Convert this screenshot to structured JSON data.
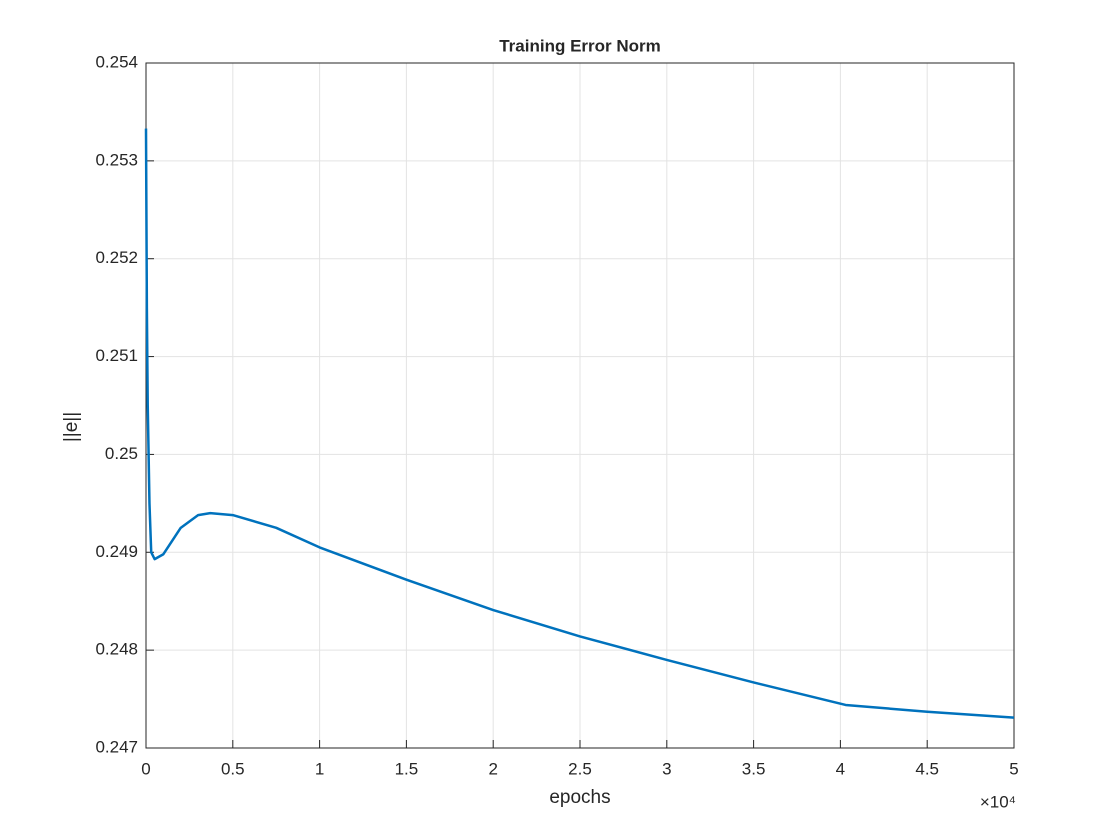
{
  "chart_data": {
    "type": "line",
    "title": "Training Error Norm",
    "x_label": "epochs",
    "y_label": "||e||",
    "x_multiplier": "×10⁴",
    "x": [
      0,
      0.005,
      0.01,
      0.02,
      0.03,
      0.05,
      0.1,
      0.2,
      0.3,
      0.37,
      0.5,
      0.75,
      1.0,
      1.5,
      2.0,
      2.5,
      3.0,
      3.5,
      4.03,
      4.5,
      5.0
    ],
    "series": [
      {
        "name": "||e||",
        "color": "#0072bd",
        "values": [
          0.25333,
          0.2515,
          0.2505,
          0.2495,
          0.249,
          0.24893,
          0.24898,
          0.24925,
          0.24938,
          0.2494,
          0.24938,
          0.24925,
          0.24905,
          0.24872,
          0.24841,
          0.24814,
          0.2479,
          0.24767,
          0.24744,
          0.24737,
          0.24731
        ]
      }
    ],
    "xlim": [
      0,
      5
    ],
    "xticks": [
      0,
      0.5,
      1,
      1.5,
      2,
      2.5,
      3,
      3.5,
      4,
      4.5,
      5
    ],
    "ylim": [
      0.247,
      0.254
    ],
    "yticks": [
      0.247,
      0.248,
      0.249,
      0.25,
      0.251,
      0.252,
      0.253,
      0.254
    ],
    "grid": true
  }
}
